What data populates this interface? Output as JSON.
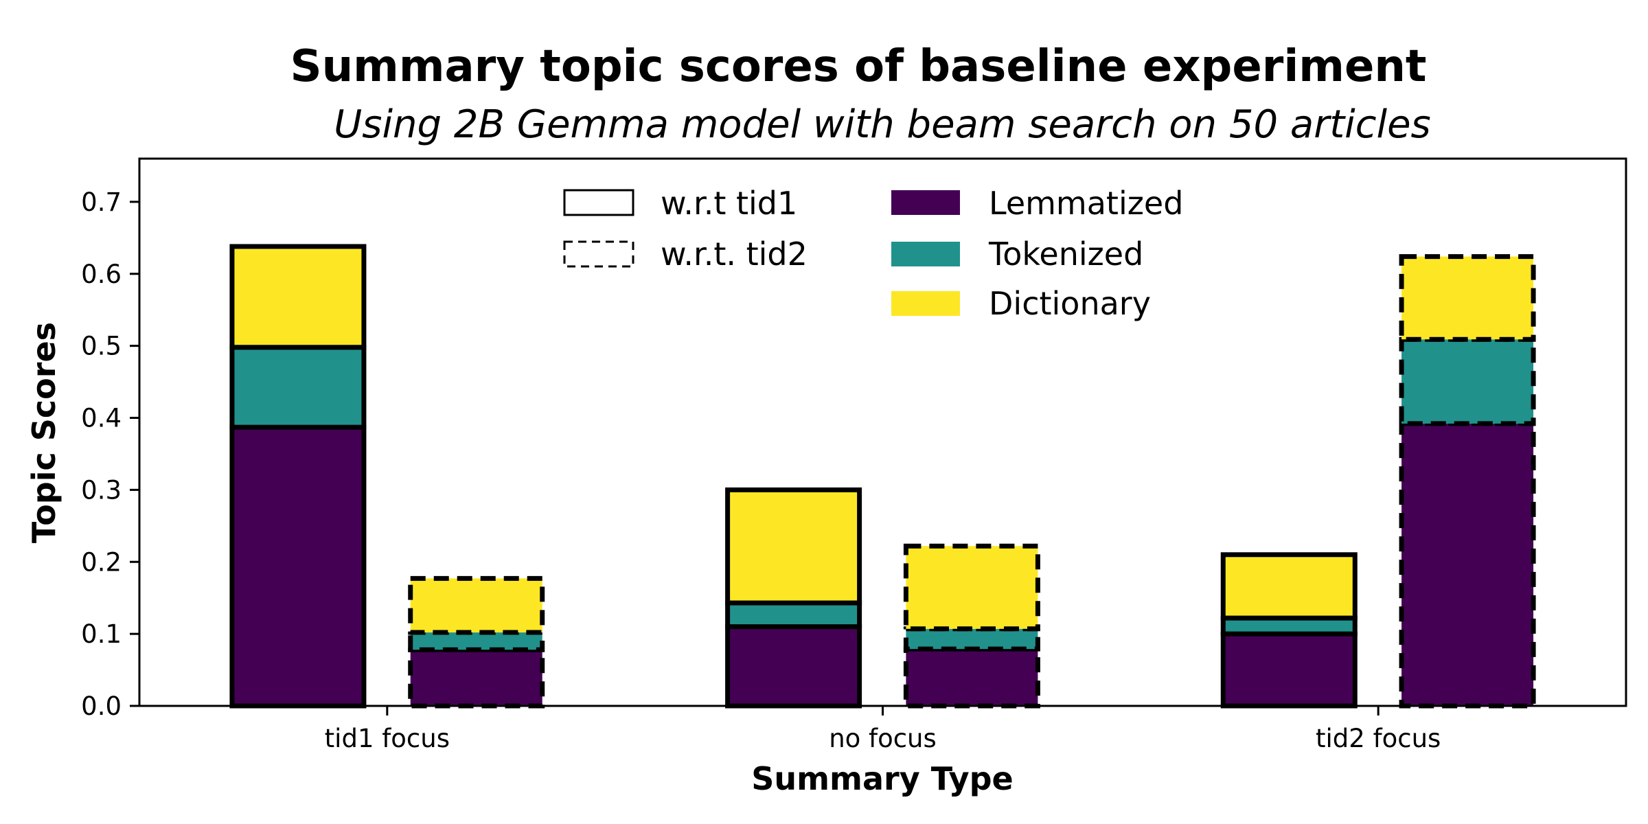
{
  "chart_data": {
    "type": "bar",
    "title": "Summary topic scores of baseline experiment",
    "subtitle": "Using 2B Gemma model with beam search on 50 articles",
    "xlabel": "Summary Type",
    "ylabel": "Topic Scores",
    "ylim": [
      0,
      0.76
    ],
    "yticks": [
      "0.0",
      "0.1",
      "0.2",
      "0.3",
      "0.4",
      "0.5",
      "0.6",
      "0.7"
    ],
    "categories": [
      "tid1 focus",
      "no focus",
      "tid2 focus"
    ],
    "stack_order": [
      "Lemmatized",
      "Tokenized",
      "Dictionary"
    ],
    "colors": {
      "Lemmatized": "#440154",
      "Tokenized": "#21918c",
      "Dictionary": "#fde725"
    },
    "groups": [
      {
        "name": "w.r.t tid1",
        "line_style": "solid",
        "values": {
          "Lemmatized": [
            0.387,
            0.11,
            0.1
          ],
          "Tokenized": [
            0.498,
            0.143,
            0.122
          ],
          "Dictionary": [
            0.638,
            0.3,
            0.21
          ]
        }
      },
      {
        "name": "w.r.t. tid2",
        "line_style": "dashed",
        "values": {
          "Lemmatized": [
            0.078,
            0.079,
            0.392
          ],
          "Tokenized": [
            0.102,
            0.107,
            0.509
          ],
          "Dictionary": [
            0.177,
            0.222,
            0.624
          ]
        }
      }
    ],
    "value_mode": "cumulative",
    "legend_placement": "top-center",
    "legend": {
      "line_styles": [
        "w.r.t tid1",
        "w.r.t. tid2"
      ],
      "series": [
        "Lemmatized",
        "Tokenized",
        "Dictionary"
      ]
    },
    "grid": false
  }
}
